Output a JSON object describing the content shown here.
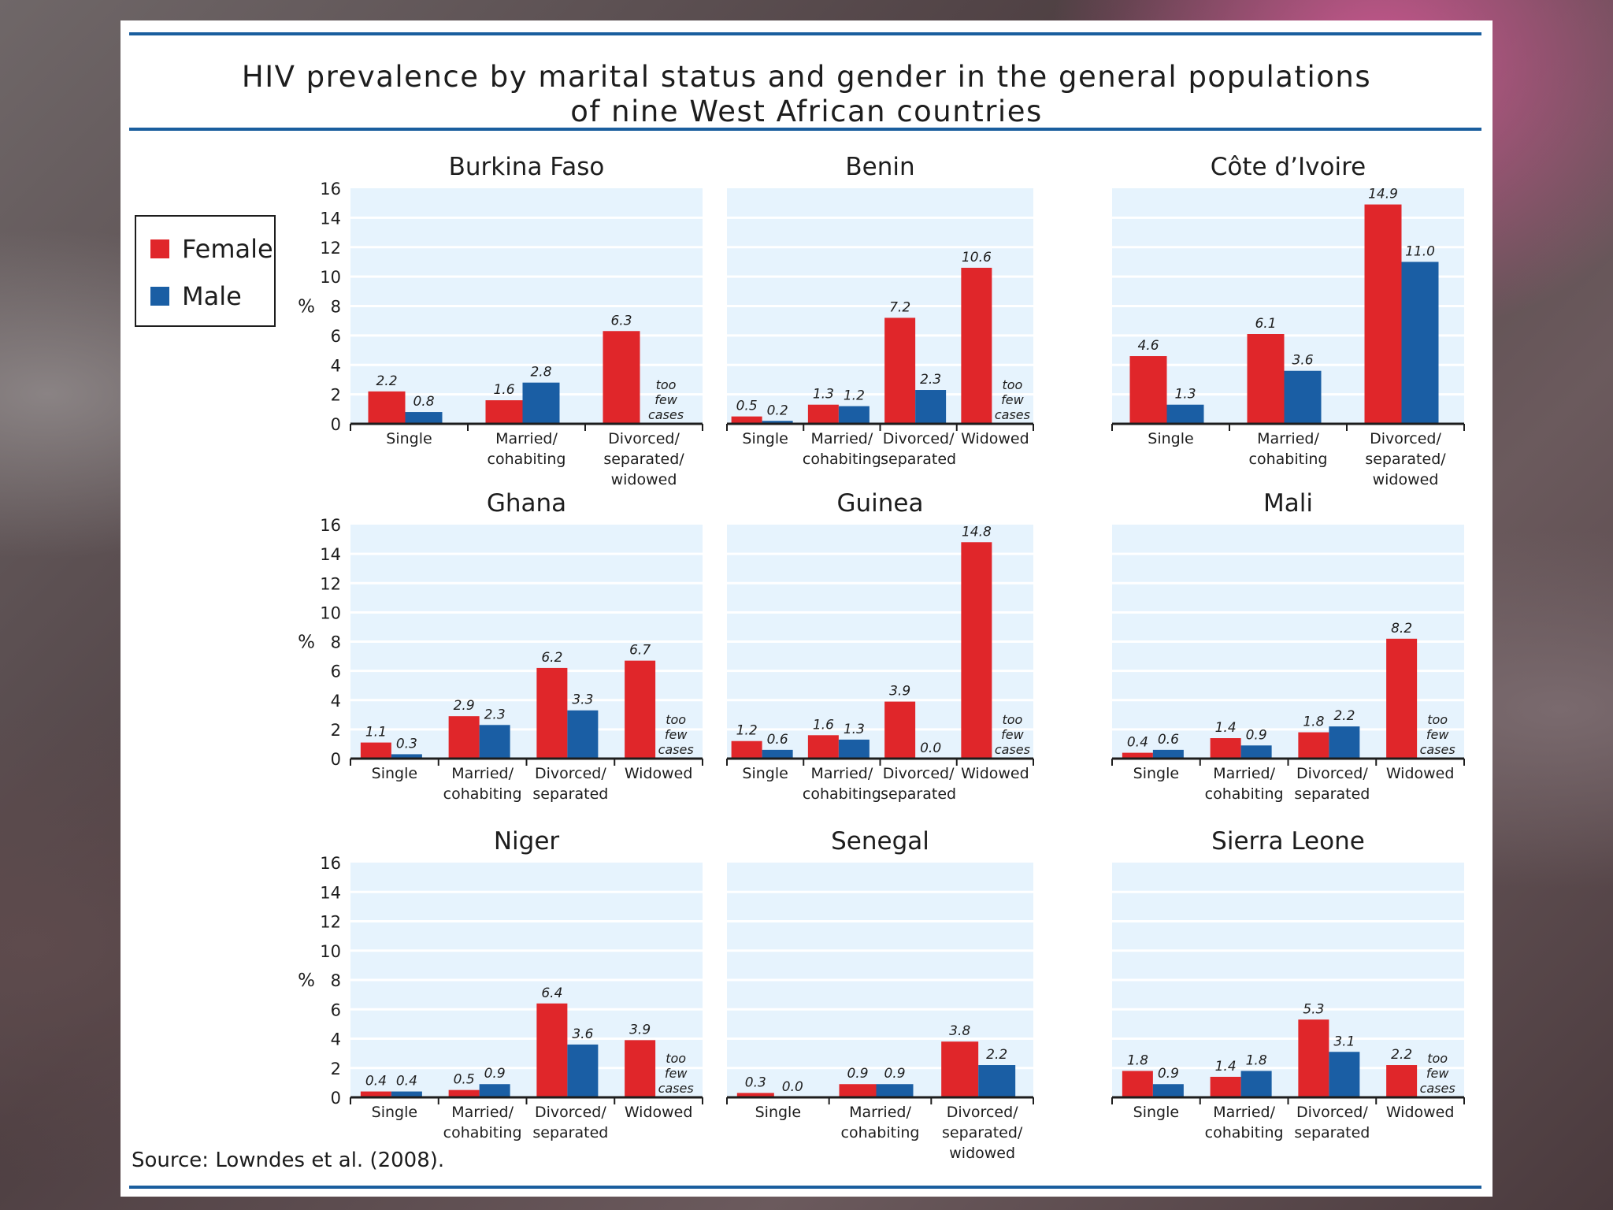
{
  "header": {
    "title_line1": "HIV prevalence by marital status and gender in the general populations",
    "title_line2": "of nine West African countries"
  },
  "legend": {
    "items": [
      {
        "label": "Female",
        "color": "#e0262a"
      },
      {
        "label": "Male",
        "color": "#1a5ea4"
      }
    ]
  },
  "source": "Source: Lowndes et al. (2008).",
  "colors": {
    "female": "#e0262a",
    "male": "#1a5ea4",
    "plot_bg": "#e6f3fd",
    "rule": "#1a5e9e"
  },
  "chart_data": [
    {
      "type": "bar",
      "title": "Burkina Faso",
      "ylabel": "%",
      "ylim": [
        0,
        16
      ],
      "yticks": [
        0,
        2,
        4,
        6,
        8,
        10,
        12,
        14,
        16
      ],
      "grid": true,
      "categories": [
        [
          "Single"
        ],
        [
          "Married/",
          "cohabiting"
        ],
        [
          "Divorced/",
          "separated/",
          "widowed"
        ]
      ],
      "series": [
        {
          "name": "Female",
          "values": [
            2.2,
            1.6,
            6.3
          ]
        },
        {
          "name": "Male",
          "values": [
            0.8,
            2.8,
            null
          ]
        }
      ],
      "labels": {
        "Female": [
          "2.2",
          "1.6",
          "6.3"
        ],
        "Male": [
          "0.8",
          "2.8",
          null
        ]
      },
      "annotations": [
        {
          "category": 2,
          "text": [
            "too",
            "few",
            "cases"
          ]
        }
      ]
    },
    {
      "type": "bar",
      "title": "Benin",
      "ylabel": "",
      "ylim": [
        0,
        16
      ],
      "yticks": [],
      "grid": true,
      "categories": [
        [
          "Single"
        ],
        [
          "Married/",
          "cohabiting"
        ],
        [
          "Divorced/",
          "separated"
        ],
        [
          "Widowed"
        ]
      ],
      "series": [
        {
          "name": "Female",
          "values": [
            0.5,
            1.3,
            7.2,
            10.6
          ]
        },
        {
          "name": "Male",
          "values": [
            0.2,
            1.2,
            2.3,
            null
          ]
        }
      ],
      "labels": {
        "Female": [
          "0.5",
          "1.3",
          "7.2",
          "10.6"
        ],
        "Male": [
          "0.2",
          "1.2",
          "2.3",
          null
        ]
      },
      "annotations": [
        {
          "category": 3,
          "text": [
            "too",
            "few",
            "cases"
          ]
        }
      ]
    },
    {
      "type": "bar",
      "title": "Côte d’Ivoire",
      "ylabel": "",
      "ylim": [
        0,
        16
      ],
      "yticks": [],
      "grid": true,
      "categories": [
        [
          "Single"
        ],
        [
          "Married/",
          "cohabiting"
        ],
        [
          "Divorced/",
          "separated/",
          "widowed"
        ]
      ],
      "series": [
        {
          "name": "Female",
          "values": [
            4.6,
            6.1,
            14.9
          ]
        },
        {
          "name": "Male",
          "values": [
            1.3,
            3.6,
            11.0
          ]
        }
      ],
      "labels": {
        "Female": [
          "4.6",
          "6.1",
          "14.9"
        ],
        "Male": [
          "1.3",
          "3.6",
          "11.0"
        ]
      },
      "annotations": []
    },
    {
      "type": "bar",
      "title": "Ghana",
      "ylabel": "%",
      "ylim": [
        0,
        16
      ],
      "yticks": [
        0,
        2,
        4,
        6,
        8,
        10,
        12,
        14,
        16
      ],
      "grid": true,
      "categories": [
        [
          "Single"
        ],
        [
          "Married/",
          "cohabiting"
        ],
        [
          "Divorced/",
          "separated"
        ],
        [
          "Widowed"
        ]
      ],
      "series": [
        {
          "name": "Female",
          "values": [
            1.1,
            2.9,
            6.2,
            6.7
          ]
        },
        {
          "name": "Male",
          "values": [
            0.3,
            2.3,
            3.3,
            null
          ]
        }
      ],
      "labels": {
        "Female": [
          "1.1",
          "2.9",
          "6.2",
          "6.7"
        ],
        "Male": [
          "0.3",
          "2.3",
          "3.3",
          null
        ]
      },
      "annotations": [
        {
          "category": 3,
          "text": [
            "too",
            "few",
            "cases"
          ]
        }
      ]
    },
    {
      "type": "bar",
      "title": "Guinea",
      "ylabel": "",
      "ylim": [
        0,
        16
      ],
      "yticks": [],
      "grid": true,
      "categories": [
        [
          "Single"
        ],
        [
          "Married/",
          "cohabiting"
        ],
        [
          "Divorced/",
          "separated"
        ],
        [
          "Widowed"
        ]
      ],
      "series": [
        {
          "name": "Female",
          "values": [
            1.2,
            1.6,
            3.9,
            14.8
          ]
        },
        {
          "name": "Male",
          "values": [
            0.6,
            1.3,
            0.0,
            null
          ]
        }
      ],
      "labels": {
        "Female": [
          "1.2",
          "1.6",
          "3.9",
          "14.8"
        ],
        "Male": [
          "0.6",
          "1.3",
          "0.0",
          null
        ]
      },
      "annotations": [
        {
          "category": 3,
          "text": [
            "too",
            "few",
            "cases"
          ]
        }
      ]
    },
    {
      "type": "bar",
      "title": "Mali",
      "ylabel": "",
      "ylim": [
        0,
        16
      ],
      "yticks": [],
      "grid": true,
      "categories": [
        [
          "Single"
        ],
        [
          "Married/",
          "cohabiting"
        ],
        [
          "Divorced/",
          "separated"
        ],
        [
          "Widowed"
        ]
      ],
      "series": [
        {
          "name": "Female",
          "values": [
            0.4,
            1.4,
            1.8,
            8.2
          ]
        },
        {
          "name": "Male",
          "values": [
            0.6,
            0.9,
            2.2,
            null
          ]
        }
      ],
      "labels": {
        "Female": [
          "0.4",
          "1.4",
          "1.8",
          "8.2"
        ],
        "Male": [
          "0.6",
          "0.9",
          "2.2",
          null
        ]
      },
      "annotations": [
        {
          "category": 3,
          "text": [
            "too",
            "few",
            "cases"
          ]
        }
      ]
    },
    {
      "type": "bar",
      "title": "Niger",
      "ylabel": "%",
      "ylim": [
        0,
        16
      ],
      "yticks": [
        0,
        2,
        4,
        6,
        8,
        10,
        12,
        14,
        16
      ],
      "grid": true,
      "categories": [
        [
          "Single"
        ],
        [
          "Married/",
          "cohabiting"
        ],
        [
          "Divorced/",
          "separated"
        ],
        [
          "Widowed"
        ]
      ],
      "series": [
        {
          "name": "Female",
          "values": [
            0.4,
            0.5,
            6.4,
            3.9
          ]
        },
        {
          "name": "Male",
          "values": [
            0.4,
            0.9,
            3.6,
            null
          ]
        }
      ],
      "labels": {
        "Female": [
          "0.4",
          "0.5",
          "6.4",
          "3.9"
        ],
        "Male": [
          "0.4",
          "0.9",
          "3.6",
          null
        ]
      },
      "annotations": [
        {
          "category": 3,
          "text": [
            "too",
            "few",
            "cases"
          ]
        }
      ]
    },
    {
      "type": "bar",
      "title": "Senegal",
      "ylabel": "",
      "ylim": [
        0,
        16
      ],
      "yticks": [],
      "grid": true,
      "categories": [
        [
          "Single"
        ],
        [
          "Married/",
          "cohabiting"
        ],
        [
          "Divorced/",
          "separated/",
          "widowed"
        ]
      ],
      "series": [
        {
          "name": "Female",
          "values": [
            0.3,
            0.9,
            3.8
          ]
        },
        {
          "name": "Male",
          "values": [
            0.0,
            0.9,
            2.2
          ]
        }
      ],
      "labels": {
        "Female": [
          "0.3",
          "0.9",
          "3.8"
        ],
        "Male": [
          "0.0",
          "0.9",
          "2.2"
        ]
      },
      "annotations": []
    },
    {
      "type": "bar",
      "title": "Sierra Leone",
      "ylabel": "",
      "ylim": [
        0,
        16
      ],
      "yticks": [],
      "grid": true,
      "categories": [
        [
          "Single"
        ],
        [
          "Married/",
          "cohabiting"
        ],
        [
          "Divorced/",
          "separated"
        ],
        [
          "Widowed"
        ]
      ],
      "series": [
        {
          "name": "Female",
          "values": [
            1.8,
            1.4,
            5.3,
            2.2
          ]
        },
        {
          "name": "Male",
          "values": [
            0.9,
            1.8,
            3.1,
            null
          ]
        }
      ],
      "labels": {
        "Female": [
          "1.8",
          "1.4",
          "5.3",
          "2.2"
        ],
        "Male": [
          "0.9",
          "1.8",
          "3.1",
          null
        ]
      },
      "annotations": [
        {
          "category": 3,
          "text": [
            "too",
            "few",
            "cases"
          ]
        }
      ]
    }
  ]
}
